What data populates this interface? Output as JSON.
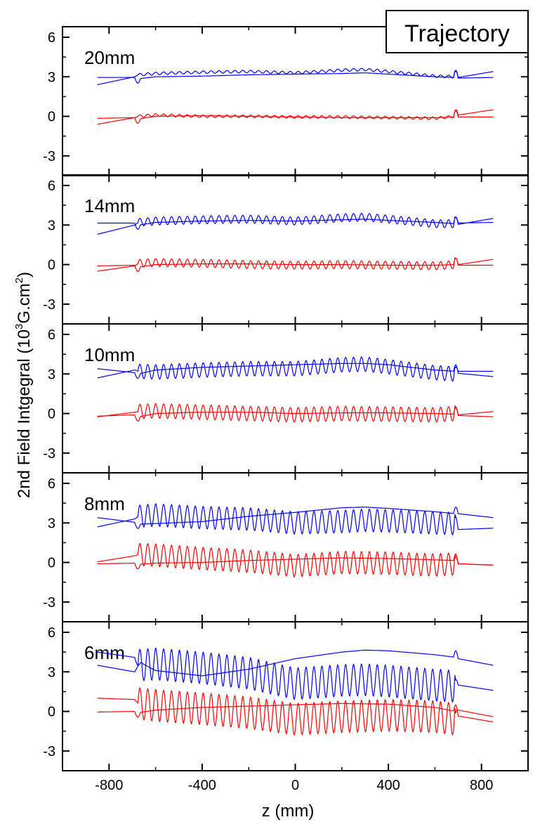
{
  "figure": {
    "badge": "Trajectory",
    "ylabel_main": "2nd Field Intgegral (10",
    "ylabel_sup1": "3",
    "ylabel_mid": "G.cm",
    "ylabel_sup2": "2",
    "ylabel_end": ")"
  },
  "chart_data": {
    "type": "line",
    "xlabel": "z (mm)",
    "xlim": [
      -1000,
      1000
    ],
    "ylim": [
      -4.5,
      6.8
    ],
    "x_ticks": [
      -800,
      -400,
      0,
      400,
      800
    ],
    "x_tick_labels": [
      "-800",
      "-400",
      "0",
      "400",
      "800"
    ],
    "y_ticks": [
      -3,
      0,
      3,
      6
    ],
    "y_tick_labels": [
      "-3",
      "0",
      "3",
      "6"
    ],
    "colors": {
      "blue": "#0000ff",
      "red": "#ff0000",
      "axis": "#000000"
    },
    "panels": [
      {
        "label": "20mm",
        "period_mm": 20,
        "series": [
          {
            "color": "blue",
            "x": [
              -850,
              -690,
              -674,
              -600,
              -400,
              -200,
              0,
              200,
              300,
              400,
              600,
              690,
              700,
              850
            ],
            "y": [
              2.4,
              3.0,
              3.15,
              3.25,
              3.35,
              3.4,
              3.3,
              3.5,
              3.55,
              3.4,
              3.05,
              3.0,
              2.95,
              3.4
            ]
          },
          {
            "color": "blue",
            "x": [
              -850,
              -690,
              -674,
              -600,
              -400,
              -200,
              0,
              200,
              300,
              400,
              600,
              690,
              700,
              850
            ],
            "y": [
              2.95,
              2.95,
              2.85,
              3.0,
              3.05,
              3.15,
              3.2,
              3.25,
              3.3,
              3.2,
              3.0,
              2.95,
              2.9,
              2.95
            ]
          },
          {
            "color": "red",
            "x": [
              -850,
              -690,
              -674,
              -600,
              -400,
              -200,
              0,
              200,
              400,
              600,
              690,
              700,
              850
            ],
            "y": [
              -0.6,
              -0.1,
              0.0,
              0.1,
              0.0,
              0.0,
              -0.05,
              -0.05,
              -0.1,
              -0.15,
              0.0,
              0.1,
              0.5
            ]
          },
          {
            "color": "red",
            "x": [
              -850,
              -690,
              -674,
              -600,
              -400,
              -200,
              0,
              200,
              400,
              600,
              690,
              700,
              850
            ],
            "y": [
              -0.15,
              -0.1,
              -0.2,
              0.0,
              0.05,
              0.0,
              -0.05,
              -0.1,
              -0.1,
              -0.1,
              -0.05,
              -0.05,
              -0.05
            ]
          }
        ]
      },
      {
        "label": "14mm",
        "period_mm": 14,
        "series": [
          {
            "color": "blue",
            "x": [
              -850,
              -690,
              -674,
              -600,
              -400,
              -200,
              0,
              200,
              300,
              400,
              600,
              690,
              700,
              850
            ],
            "y": [
              2.3,
              3.0,
              3.2,
              3.3,
              3.4,
              3.45,
              3.3,
              3.55,
              3.6,
              3.45,
              3.1,
              3.1,
              3.05,
              3.5
            ]
          },
          {
            "color": "blue",
            "x": [
              -850,
              -690,
              -674,
              -600,
              -400,
              -200,
              0,
              200,
              300,
              400,
              600,
              690,
              700,
              850
            ],
            "y": [
              3.15,
              3.15,
              3.0,
              3.2,
              3.3,
              3.35,
              3.3,
              3.4,
              3.45,
              3.35,
              3.2,
              3.1,
              3.15,
              3.2
            ]
          },
          {
            "color": "red",
            "x": [
              -850,
              -690,
              -674,
              -600,
              -400,
              -200,
              0,
              200,
              400,
              600,
              690,
              700,
              850
            ],
            "y": [
              -0.5,
              -0.1,
              0.1,
              0.15,
              0.1,
              0.0,
              -0.05,
              0.0,
              -0.05,
              -0.1,
              0.0,
              0.0,
              0.4
            ]
          },
          {
            "color": "red",
            "x": [
              -850,
              -690,
              -674,
              -600,
              -400,
              -200,
              0,
              200,
              400,
              600,
              690,
              700,
              850
            ],
            "y": [
              -0.1,
              -0.05,
              -0.2,
              0.0,
              0.05,
              0.05,
              0.0,
              0.0,
              -0.05,
              -0.05,
              0.0,
              -0.05,
              -0.05
            ]
          }
        ]
      },
      {
        "label": "10mm",
        "period_mm": 10,
        "series": [
          {
            "color": "blue",
            "x": [
              -850,
              -690,
              -674,
              -600,
              -400,
              -200,
              0,
              200,
              300,
              400,
              600,
              690,
              700,
              850
            ],
            "y": [
              2.7,
              3.3,
              3.2,
              3.15,
              3.3,
              3.4,
              3.4,
              3.7,
              3.75,
              3.55,
              3.1,
              3.0,
              3.2,
              3.2
            ]
          },
          {
            "color": "blue",
            "x": [
              -850,
              -690,
              -674,
              -600,
              -400,
              -200,
              0,
              200,
              300,
              400,
              600,
              690,
              700,
              850
            ],
            "y": [
              3.4,
              3.1,
              3.0,
              3.3,
              3.5,
              3.6,
              3.7,
              3.8,
              3.8,
              3.7,
              3.3,
              3.2,
              3.05,
              2.8
            ]
          },
          {
            "color": "red",
            "x": [
              -850,
              -690,
              -674,
              -600,
              -400,
              -200,
              0,
              200,
              400,
              600,
              690,
              700,
              850
            ],
            "y": [
              -0.25,
              0.1,
              0.15,
              0.2,
              0.1,
              0.0,
              -0.1,
              0.0,
              -0.05,
              -0.1,
              0.0,
              -0.1,
              0.15
            ]
          },
          {
            "color": "red",
            "x": [
              -850,
              -690,
              -674,
              -600,
              -400,
              -200,
              0,
              200,
              400,
              600,
              690,
              700,
              850
            ],
            "y": [
              -0.2,
              -0.1,
              -0.25,
              0.0,
              0.1,
              0.1,
              0.0,
              0.05,
              0.05,
              0.0,
              -0.05,
              -0.15,
              -0.25
            ]
          }
        ]
      },
      {
        "label": "8mm",
        "period_mm": 8,
        "series": [
          {
            "color": "blue",
            "x": [
              -850,
              -690,
              -674,
              -600,
              -400,
              -200,
              0,
              200,
              300,
              400,
              600,
              690,
              700,
              850
            ],
            "y": [
              2.7,
              3.3,
              3.5,
              3.6,
              3.4,
              3.3,
              3.0,
              3.1,
              3.2,
              3.15,
              3.0,
              2.95,
              2.5,
              2.6
            ]
          },
          {
            "color": "blue",
            "x": [
              -850,
              -690,
              -674,
              -600,
              -400,
              -200,
              0,
              200,
              300,
              400,
              600,
              690,
              700,
              850
            ],
            "y": [
              3.4,
              3.05,
              2.9,
              2.95,
              3.1,
              3.5,
              3.8,
              4.15,
              4.2,
              4.1,
              3.85,
              3.7,
              3.7,
              3.4
            ]
          },
          {
            "color": "red",
            "x": [
              -850,
              -690,
              -674,
              -600,
              -400,
              -200,
              0,
              200,
              400,
              600,
              690,
              700,
              850
            ],
            "y": [
              0.05,
              0.5,
              0.6,
              0.55,
              0.3,
              0.1,
              -0.25,
              0.0,
              -0.05,
              -0.2,
              -0.1,
              -0.1,
              -0.2
            ]
          },
          {
            "color": "red",
            "x": [
              -850,
              -690,
              -674,
              -600,
              -400,
              -200,
              0,
              200,
              400,
              600,
              690,
              700,
              850
            ],
            "y": [
              -0.1,
              -0.05,
              -0.15,
              -0.05,
              0.0,
              0.15,
              0.25,
              0.35,
              0.3,
              0.2,
              0.15,
              -0.1,
              -0.2
            ]
          }
        ]
      },
      {
        "label": "6mm",
        "period_mm": 6,
        "series": [
          {
            "color": "blue",
            "x": [
              -850,
              -690,
              -674,
              -600,
              -400,
              -200,
              0,
              200,
              300,
              400,
              600,
              690,
              700,
              850
            ],
            "y": [
              3.5,
              3.0,
              3.5,
              3.6,
              3.3,
              2.9,
              2.1,
              2.35,
              2.4,
              2.3,
              2.0,
              1.9,
              2.0,
              1.6
            ]
          },
          {
            "color": "blue",
            "x": [
              -850,
              -690,
              -674,
              -600,
              -400,
              -200,
              0,
              200,
              300,
              400,
              600,
              690,
              700,
              850
            ],
            "y": [
              4.5,
              4.1,
              3.8,
              3.1,
              2.7,
              3.2,
              4.0,
              4.5,
              4.65,
              4.6,
              4.3,
              4.1,
              4.0,
              3.5
            ]
          },
          {
            "color": "red",
            "x": [
              -850,
              -690,
              -674,
              -600,
              -400,
              -200,
              0,
              200,
              400,
              600,
              690,
              700,
              850
            ],
            "y": [
              1.0,
              0.9,
              0.6,
              0.45,
              0.2,
              -0.1,
              -0.6,
              -0.4,
              -0.3,
              -0.4,
              -0.6,
              0.1,
              -0.4
            ]
          },
          {
            "color": "red",
            "x": [
              -850,
              -690,
              -674,
              -600,
              -400,
              -200,
              0,
              200,
              400,
              600,
              690,
              700,
              850
            ],
            "y": [
              -0.05,
              0.0,
              -0.1,
              0.1,
              0.3,
              0.4,
              0.5,
              0.6,
              0.55,
              0.3,
              0.0,
              -0.35,
              -0.8
            ]
          }
        ]
      }
    ]
  }
}
